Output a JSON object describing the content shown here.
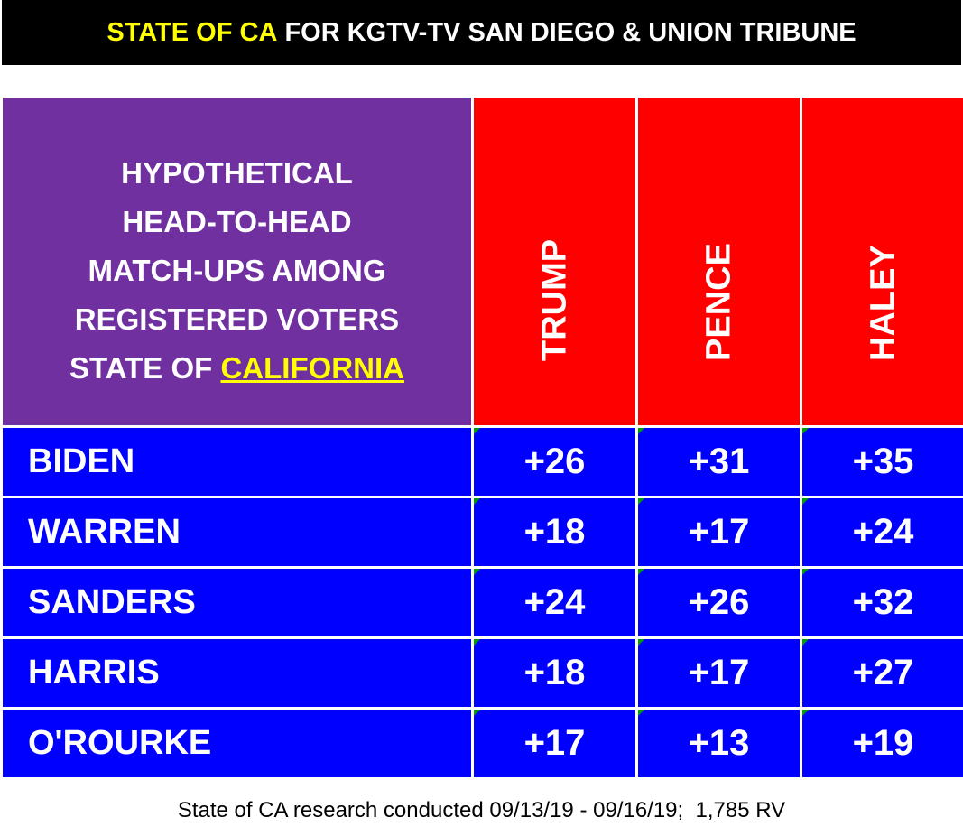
{
  "header": {
    "title_highlight": "STATE OF CA",
    "title_rest": " FOR KGTV-TV SAN DIEGO & UNION TRIBUNE"
  },
  "table": {
    "corner": {
      "lines": [
        "HYPOTHETICAL",
        "HEAD-TO-HEAD",
        "MATCH-UPS AMONG",
        "REGISTERED VOTERS"
      ],
      "last_line_prefix": "STATE OF ",
      "last_line_highlight": "CALIFORNIA"
    },
    "columns": [
      "TRUMP",
      "PENCE",
      "HALEY"
    ],
    "rows": [
      {
        "name": "BIDEN",
        "cells": [
          "+26",
          "+31",
          "+35"
        ]
      },
      {
        "name": "WARREN",
        "cells": [
          "+18",
          "+17",
          "+24"
        ]
      },
      {
        "name": "SANDERS",
        "cells": [
          "+24",
          "+26",
          "+32"
        ]
      },
      {
        "name": "HARRIS",
        "cells": [
          "+18",
          "+17",
          "+27"
        ]
      },
      {
        "name": "O'ROURKE",
        "cells": [
          "+17",
          "+13",
          "+19"
        ]
      }
    ]
  },
  "footer": {
    "text": "State of CA research conducted 09/13/19 - 09/16/19;  1,785 RV"
  }
}
